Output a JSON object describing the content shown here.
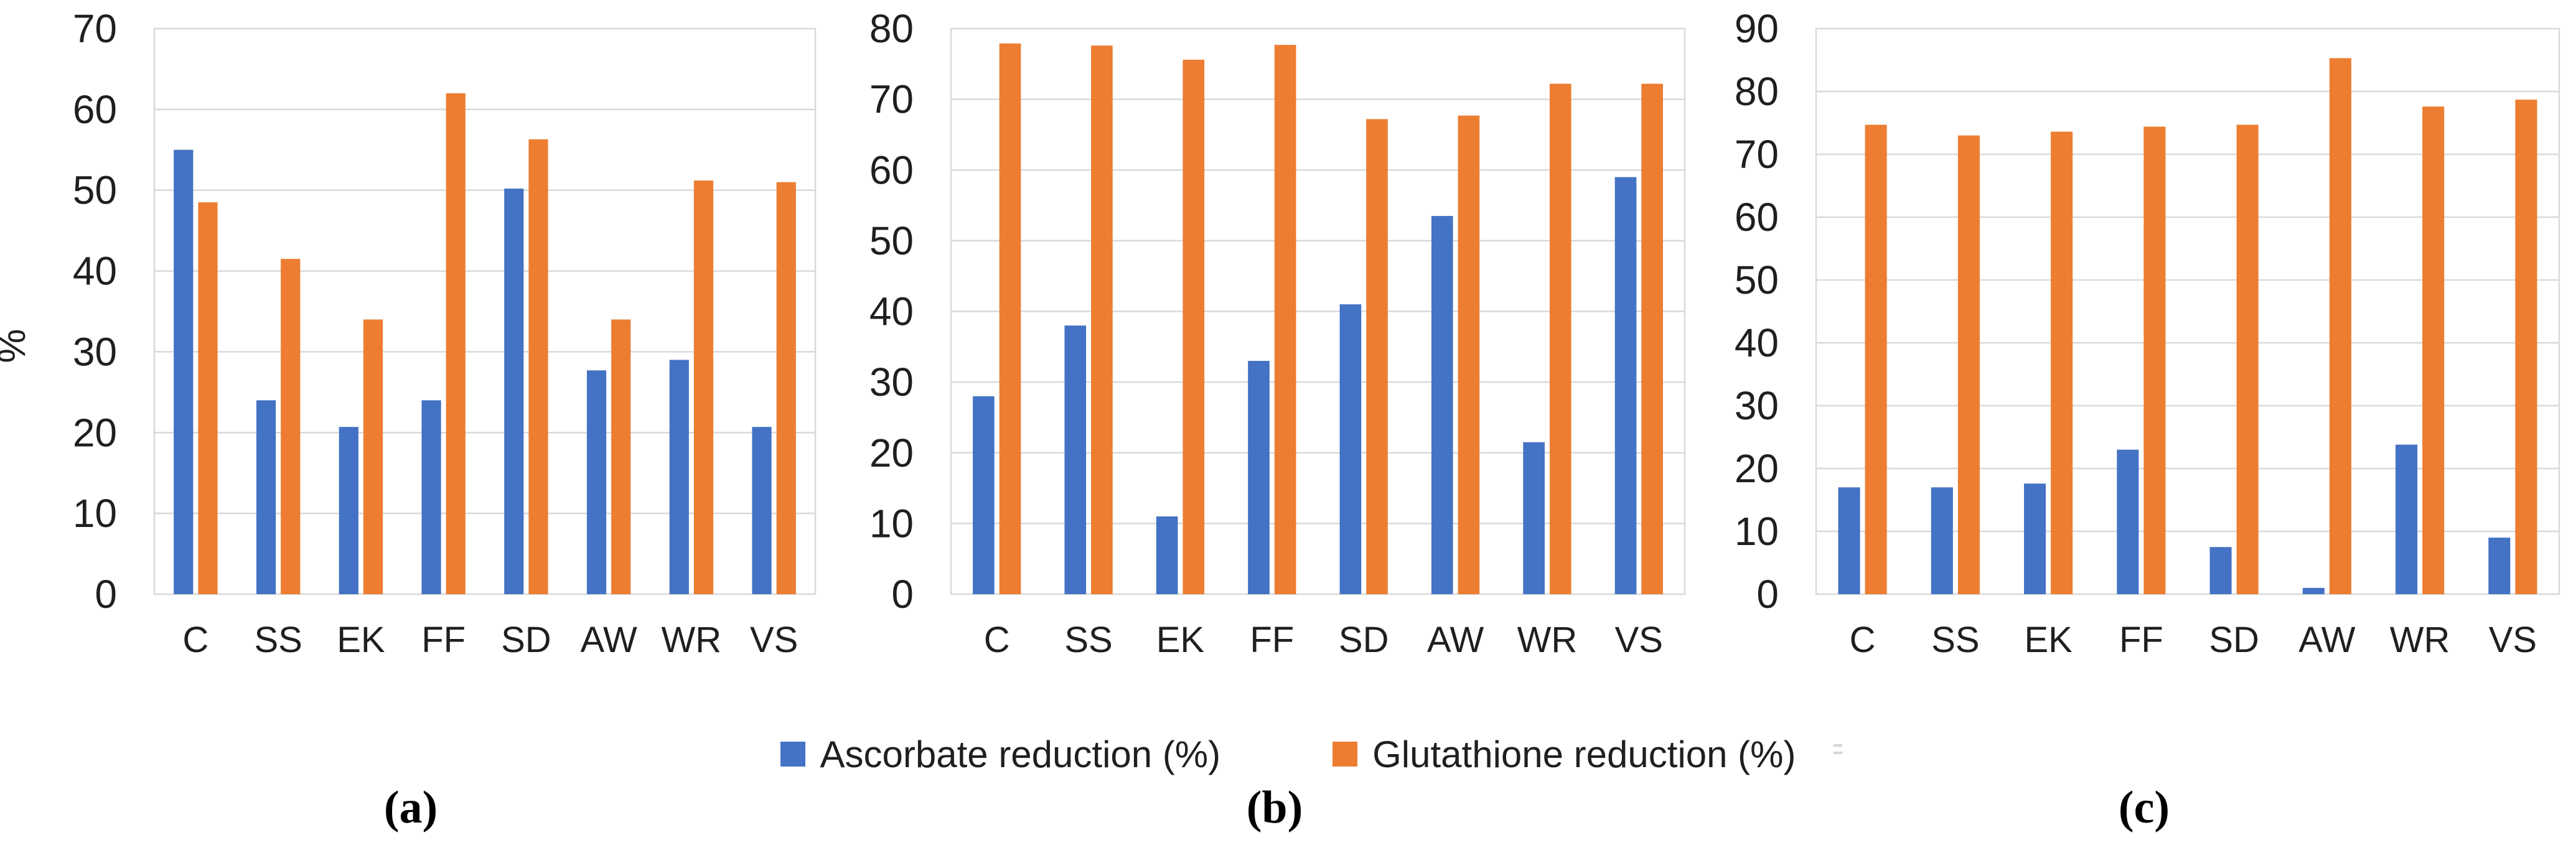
{
  "page": {
    "background": "#ffffff",
    "description": "Figure with three grouped bar charts (a), (b), (c) comparing ascorbate and glutathione reduction percentages"
  },
  "colors": {
    "ascorbate_blue": "#4472C4",
    "glutathione_orange": "#ED7D31",
    "gridline_gray": "#D9D9D9",
    "axis_text": "#1f1f1f"
  },
  "legend": {
    "items": [
      {
        "key": "ascorbate",
        "label": "Ascorbate reduction (%)",
        "color": "#4472C4"
      },
      {
        "key": "glutathione",
        "label": "Glutathione reduction (%)",
        "color": "#ED7D31"
      }
    ]
  },
  "chart_data": [
    {
      "id": "a",
      "type": "bar",
      "panel_label": "(a)",
      "title": "",
      "xlabel": "",
      "ylabel": "%",
      "ylim": [
        0,
        70
      ],
      "ytick_step": 10,
      "grid": true,
      "legend_position": "bottom-shared",
      "categories": [
        "C",
        "SS",
        "EK",
        "FF",
        "SD",
        "AW",
        "WR",
        "VS"
      ],
      "series": [
        {
          "name": "Ascorbate reduction (%)",
          "color": "#4472C4",
          "values": [
            55,
            24,
            20.7,
            24,
            50.2,
            27.7,
            29,
            20.7
          ]
        },
        {
          "name": "Glutathione reduction (%)",
          "color": "#ED7D31",
          "values": [
            48.5,
            41.5,
            34,
            62,
            56.3,
            34,
            51.2,
            51
          ]
        }
      ]
    },
    {
      "id": "b",
      "type": "bar",
      "panel_label": "(b)",
      "title": "",
      "xlabel": "",
      "ylabel": "",
      "ylim": [
        0,
        80
      ],
      "ytick_step": 10,
      "grid": true,
      "legend_position": "bottom-shared",
      "categories": [
        "C",
        "SS",
        "EK",
        "FF",
        "SD",
        "AW",
        "WR",
        "VS"
      ],
      "series": [
        {
          "name": "Ascorbate reduction (%)",
          "color": "#4472C4",
          "values": [
            28,
            38,
            11,
            33,
            41,
            53.5,
            21.5,
            59
          ]
        },
        {
          "name": "Glutathione reduction (%)",
          "color": "#ED7D31",
          "values": [
            77.9,
            77.6,
            75.6,
            77.7,
            67.2,
            67.7,
            72.2,
            72.2
          ]
        }
      ]
    },
    {
      "id": "c",
      "type": "bar",
      "panel_label": "(c)",
      "title": "",
      "xlabel": "",
      "ylabel": "",
      "ylim": [
        0,
        90
      ],
      "ytick_step": 10,
      "grid": true,
      "legend_position": "bottom-shared",
      "categories": [
        "C",
        "SS",
        "EK",
        "FF",
        "SD",
        "AW",
        "WR",
        "VS"
      ],
      "series": [
        {
          "name": "Ascorbate reduction (%)",
          "color": "#4472C4",
          "values": [
            17,
            17,
            17.6,
            23,
            7.5,
            1,
            23.8,
            9
          ]
        },
        {
          "name": "Glutathione reduction (%)",
          "color": "#ED7D31",
          "values": [
            74.7,
            73,
            73.6,
            74.4,
            74.7,
            85.3,
            77.6,
            78.7
          ]
        }
      ]
    }
  ]
}
